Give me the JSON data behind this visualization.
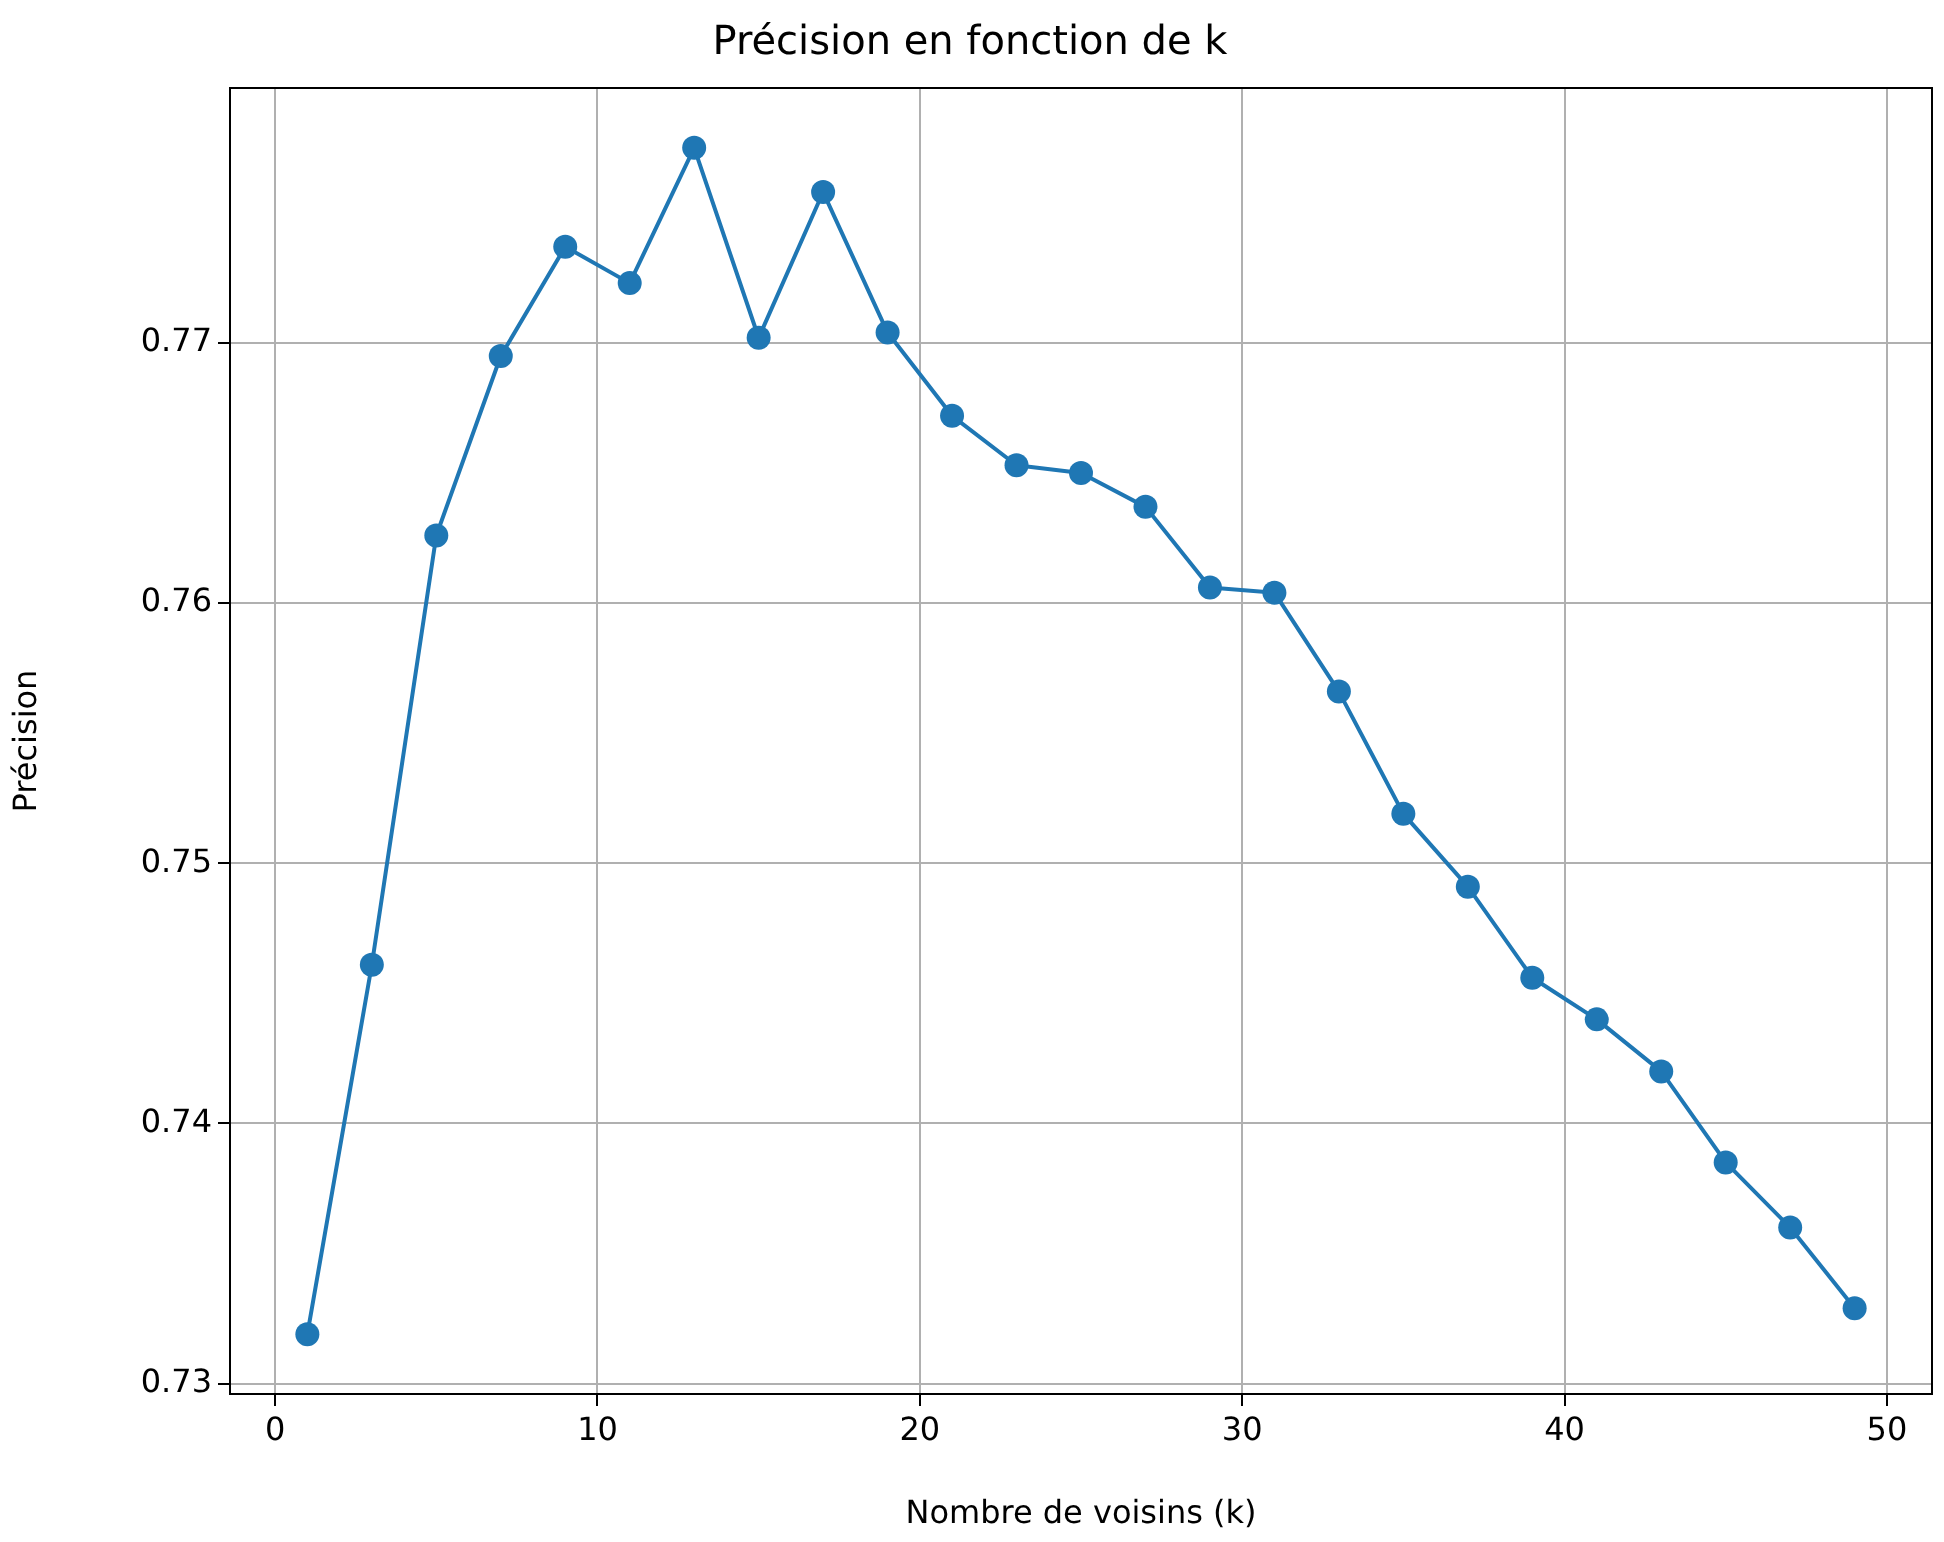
{
  "chart_data": {
    "type": "line",
    "title": "Précision en fonction de k",
    "xlabel": "Nombre de voisins (k)",
    "ylabel": "Précision",
    "x": [
      1,
      3,
      5,
      7,
      9,
      11,
      13,
      15,
      17,
      19,
      21,
      23,
      25,
      27,
      29,
      31,
      33,
      35,
      37,
      39,
      41,
      43,
      45,
      47,
      49
    ],
    "series": [
      {
        "color": "#1f77b4",
        "values": [
          0.7319,
          0.7461,
          0.7626,
          0.7695,
          0.7737,
          0.7723,
          0.7775,
          0.7702,
          0.7758,
          0.7704,
          0.7672,
          0.7653,
          0.765,
          0.7637,
          0.7606,
          0.7604,
          0.7566,
          0.7519,
          0.7491,
          0.7456,
          0.744,
          0.742,
          0.7385,
          0.736,
          0.7329
        ]
      }
    ],
    "xlim": [
      -1.4,
      51.4
    ],
    "ylim": [
      0.7296,
      0.7798
    ],
    "xticks": [
      0,
      10,
      20,
      30,
      40,
      50
    ],
    "yticks": [
      0.73,
      0.74,
      0.75,
      0.76,
      0.77
    ],
    "grid": true,
    "marker": "circle",
    "line_style": "solid",
    "legend": false
  }
}
